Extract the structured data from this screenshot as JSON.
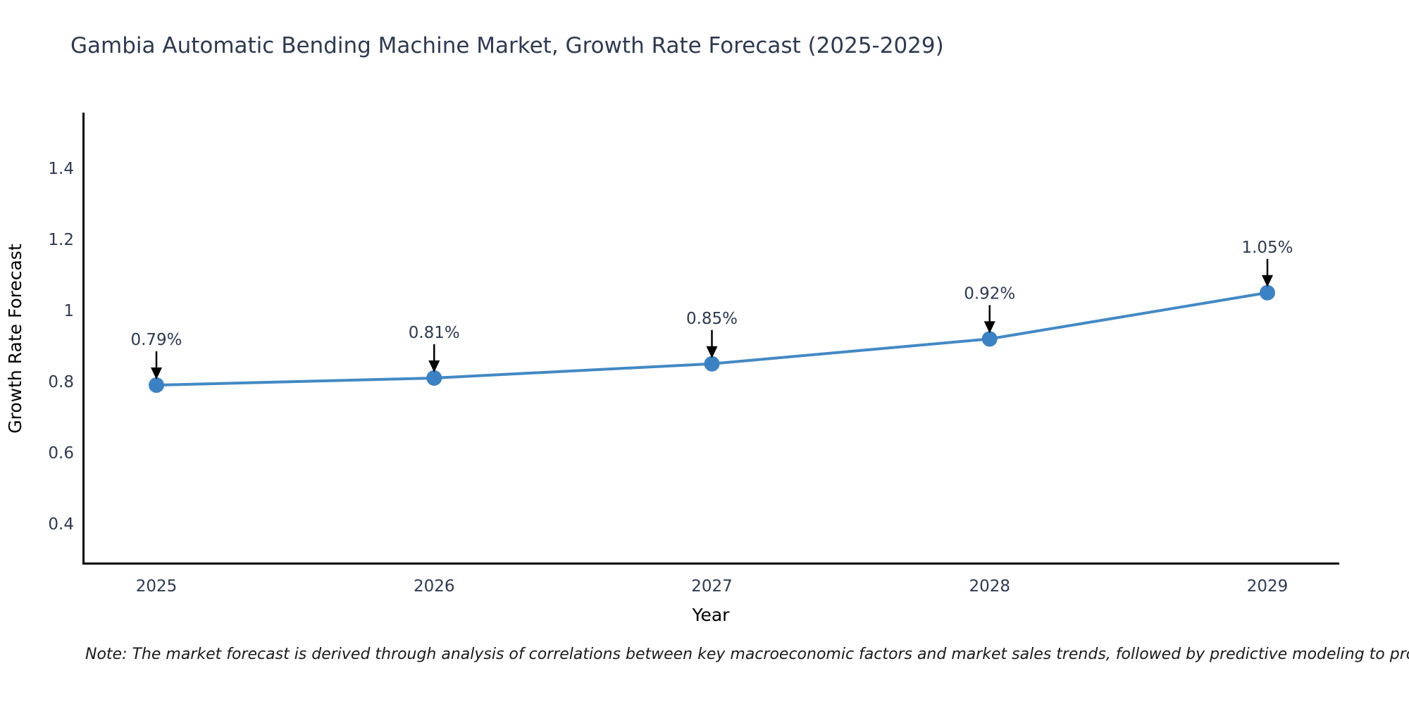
{
  "chart_data": {
    "type": "line",
    "title": "Gambia Automatic Bending Machine Market, Growth Rate Forecast (2025-2029)",
    "xlabel": "Year",
    "ylabel": "Growth Rate Forecast",
    "x": [
      2025,
      2026,
      2027,
      2028,
      2029
    ],
    "series": [
      {
        "name": "Growth Rate Forecast",
        "values": [
          0.79,
          0.81,
          0.85,
          0.92,
          1.05
        ],
        "point_labels": [
          "0.79%",
          "0.81%",
          "0.85%",
          "0.92%",
          "1.05%"
        ]
      }
    ],
    "xticks": {
      "values": [
        2025,
        2026,
        2027,
        2028,
        2029
      ],
      "labels": [
        "2025",
        "2026",
        "2027",
        "2028",
        "2029"
      ]
    },
    "yticks": {
      "values": [
        0.4,
        0.6,
        0.8,
        1.0,
        1.2,
        1.4
      ],
      "labels": [
        "0.4",
        "0.6",
        "0.8",
        "1",
        "1.2",
        "1.4"
      ]
    },
    "xrange": [
      2024.74,
      2029.26
    ],
    "yrange": [
      0.287,
      1.556
    ],
    "grid": false,
    "legend": null,
    "annotations_have_arrows": true,
    "colors": {
      "line": "#4289c4",
      "marker": "#3b82c4",
      "axis": "#000000",
      "text": "#2e3a52",
      "arrow": "#000000"
    }
  },
  "note": {
    "text": "Note: The market forecast is derived through analysis of correlations between key macroeconomic factors and market sales trends, followed by predictive modeling to project future sales"
  }
}
